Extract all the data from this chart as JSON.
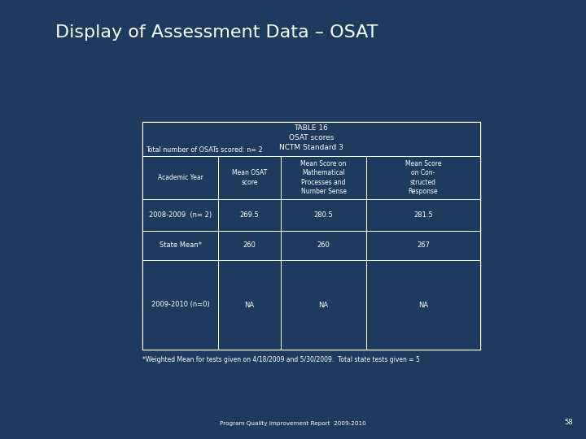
{
  "title": "Display of Assessment Data – OSAT",
  "bg_color": "#1e3a5f",
  "table_title_line1": "TABLE 16",
  "table_title_line2": "OSAT scores",
  "table_title_line3": "NCTM Standard 3",
  "total_scored": "Total number of OSATs scored: n= 2",
  "col_headers": [
    "Academic Year",
    "Mean OSAT\nscore",
    "Mean Score on\nMathematical\nProcesses and\nNumber Sense",
    "Mean Score\non Con-\nstructed\nResponse"
  ],
  "rows": [
    [
      "2008-2009  (n= 2)",
      "269.5",
      "280.5",
      "281.5"
    ],
    [
      "State Mean*",
      "260",
      "260",
      "267"
    ],
    [
      "2009-2010 (n=0)",
      "NA",
      "NA",
      "NA"
    ]
  ],
  "footnote": "*Weighted Mean for tests given on 4/18/2009 and 5/30/2009.  Total state tests given = 5",
  "footer": "Program Quality Improvement Report  2009-2010",
  "page_num": "58",
  "text_color": "#ffffff",
  "table_border_color": "#ffffff",
  "cell_bg_color": "#1e3a5f"
}
